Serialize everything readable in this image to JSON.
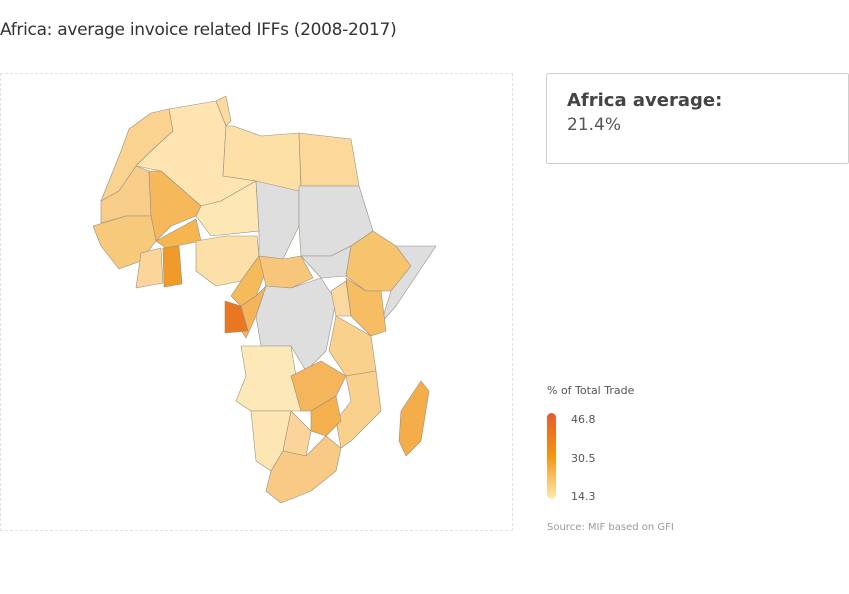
{
  "title": "Africa: average invoice related IFFs (2008-2017)",
  "summary": {
    "label": "Africa average:",
    "value": "21.4%"
  },
  "legend": {
    "title": "% of Total Trade",
    "max": "46.8",
    "mid": "30.5",
    "min": "14.3",
    "colors": {
      "max": "#e55a2b",
      "mid": "#f39514",
      "min": "#fdeab0",
      "no_data": "#dedede"
    }
  },
  "source": "Source: MIF based on GFI"
}
